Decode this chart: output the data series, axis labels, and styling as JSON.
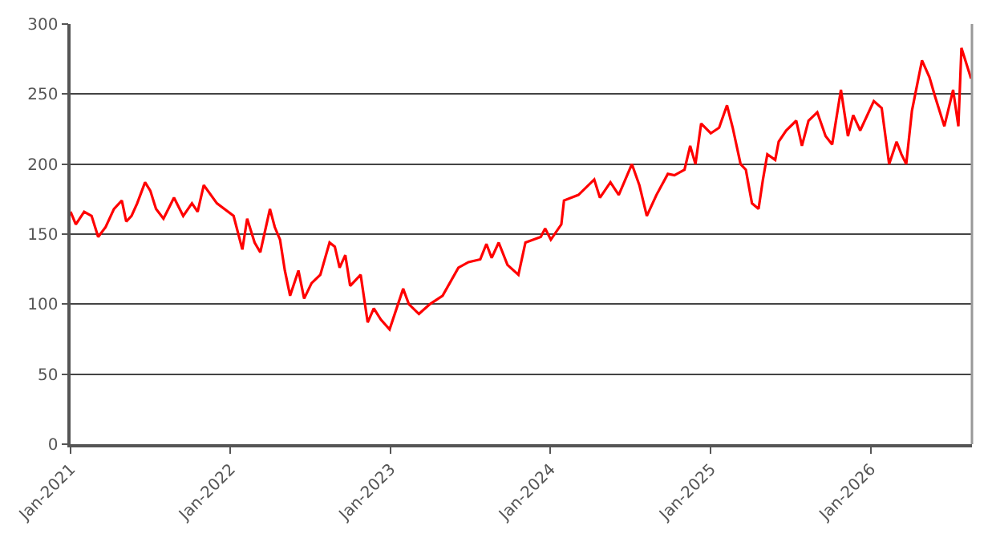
{
  "chart_data": {
    "type": "line",
    "x": [
      "2021-01-01",
      "2021-01-13",
      "2021-02-01",
      "2021-02-18",
      "2021-03-05",
      "2021-03-22",
      "2021-04-10",
      "2021-04-28",
      "2021-05-08",
      "2021-05-20",
      "2021-06-02",
      "2021-06-20",
      "2021-07-02",
      "2021-07-15",
      "2021-08-01",
      "2021-08-25",
      "2021-09-15",
      "2021-10-05",
      "2021-10-18",
      "2021-11-01",
      "2021-12-01",
      "2022-01-08",
      "2022-01-28",
      "2022-02-08",
      "2022-02-25",
      "2022-03-10",
      "2022-04-01",
      "2022-04-12",
      "2022-04-24",
      "2022-05-05",
      "2022-05-17",
      "2022-06-05",
      "2022-06-18",
      "2022-07-05",
      "2022-07-25",
      "2022-08-15",
      "2022-08-27",
      "2022-09-07",
      "2022-09-20",
      "2022-10-01",
      "2022-10-25",
      "2022-11-10",
      "2022-11-24",
      "2022-12-10",
      "2022-12-30",
      "2023-01-30",
      "2023-02-12",
      "2023-03-07",
      "2023-04-01",
      "2023-04-30",
      "2023-06-05",
      "2023-06-28",
      "2023-07-25",
      "2023-08-08",
      "2023-08-20",
      "2023-09-05",
      "2023-09-25",
      "2023-10-20",
      "2023-11-05",
      "2023-12-10",
      "2023-12-20",
      "2024-01-02",
      "2024-01-26",
      "2024-02-01",
      "2024-03-05",
      "2024-04-10",
      "2024-04-23",
      "2024-05-17",
      "2024-06-05",
      "2024-07-05",
      "2024-07-22",
      "2024-08-08",
      "2024-08-30",
      "2024-09-25",
      "2024-10-10",
      "2024-11-02",
      "2024-11-15",
      "2024-11-27",
      "2024-12-10",
      "2025-01-01",
      "2025-01-20",
      "2025-02-07",
      "2025-02-20",
      "2025-03-10",
      "2025-03-22",
      "2025-04-05",
      "2025-04-20",
      "2025-04-30",
      "2025-05-10",
      "2025-05-28",
      "2025-06-05",
      "2025-06-22",
      "2025-07-15",
      "2025-07-28",
      "2025-08-12",
      "2025-09-01",
      "2025-09-20",
      "2025-10-05",
      "2025-10-25",
      "2025-11-10",
      "2025-11-22",
      "2025-12-08",
      "2026-01-08",
      "2026-01-26",
      "2026-02-12",
      "2026-03-01",
      "2026-03-12",
      "2026-03-23",
      "2026-04-05",
      "2026-04-28",
      "2026-05-15",
      "2026-05-28",
      "2026-06-18",
      "2026-07-08",
      "2026-07-20",
      "2026-07-27",
      "2026-08-18"
    ],
    "series": [
      {
        "color": "#ff0000",
        "values": [
          166,
          157,
          166,
          163,
          148,
          155,
          168,
          174,
          159,
          163,
          172,
          187,
          181,
          168,
          161,
          176,
          163,
          172,
          166,
          185,
          172,
          163,
          139,
          161,
          144,
          137,
          168,
          155,
          146,
          124,
          106,
          124,
          104,
          115,
          121,
          144,
          141,
          126,
          135,
          113,
          121,
          87,
          97,
          89,
          82,
          111,
          100,
          93,
          100,
          106,
          126,
          130,
          132,
          143,
          133,
          144,
          128,
          121,
          144,
          148,
          154,
          146,
          157,
          174,
          178,
          189,
          176,
          187,
          178,
          200,
          185,
          163,
          178,
          193,
          192,
          196,
          213,
          200,
          229,
          222,
          226,
          242,
          226,
          200,
          196,
          172,
          168,
          189,
          207,
          203,
          216,
          224,
          231,
          213,
          231,
          237,
          220,
          214,
          253,
          220,
          235,
          224,
          245,
          240,
          200,
          216,
          207,
          200,
          238,
          274,
          262,
          248,
          227,
          253,
          227,
          283,
          261
        ]
      }
    ],
    "xlim": [
      "2021-01-01",
      "2026-08-20"
    ],
    "xticks": [
      {
        "value": "2021-01-01",
        "label": "Jan-2021"
      },
      {
        "value": "2022-01-01",
        "label": "Jan-2022"
      },
      {
        "value": "2023-01-01",
        "label": "Jan-2023"
      },
      {
        "value": "2024-01-01",
        "label": "Jan-2024"
      },
      {
        "value": "2025-01-01",
        "label": "Jan-2025"
      },
      {
        "value": "2026-01-01",
        "label": "Jan-2026"
      }
    ],
    "ylim": [
      0,
      300
    ],
    "yticks": [
      0,
      50,
      100,
      150,
      200,
      250,
      300
    ],
    "grid": "y",
    "marker": "none",
    "line_style": "solid"
  }
}
